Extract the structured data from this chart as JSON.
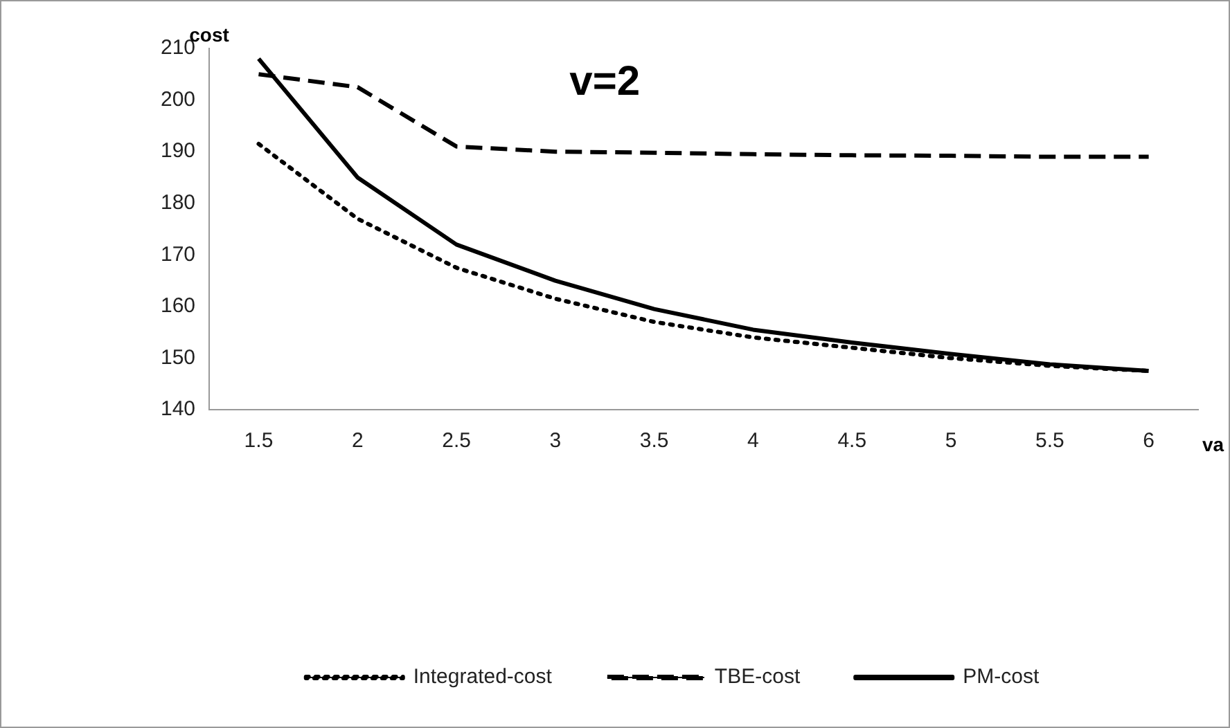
{
  "chart_data": {
    "type": "line",
    "title": "v=2",
    "xlabel": "va",
    "ylabel": "cost",
    "categories": [
      "1.5",
      "2",
      "2.5",
      "3",
      "3.5",
      "4",
      "4.5",
      "5",
      "5.5",
      "6"
    ],
    "series": [
      {
        "name": "Integrated-cost",
        "color": "#000000",
        "line_style": "dotted",
        "values": [
          191.5,
          177,
          167.5,
          161.5,
          157,
          154,
          152,
          150,
          148.5,
          147.5
        ]
      },
      {
        "name": "TBE-cost",
        "color": "#000000",
        "line_style": "dashed",
        "values": [
          205,
          202.5,
          191,
          190,
          189.8,
          189.5,
          189.3,
          189.2,
          189,
          189
        ]
      },
      {
        "name": "PM-cost",
        "color": "#000000",
        "line_style": "solid",
        "values": [
          208,
          185,
          172,
          165,
          159.5,
          155.5,
          153,
          150.8,
          148.8,
          147.5
        ]
      }
    ],
    "ylim": [
      140,
      210
    ],
    "yticks": [
      140,
      150,
      160,
      170,
      180,
      190,
      200,
      210
    ],
    "grid": false,
    "legend": "bottom",
    "marker": "none"
  }
}
